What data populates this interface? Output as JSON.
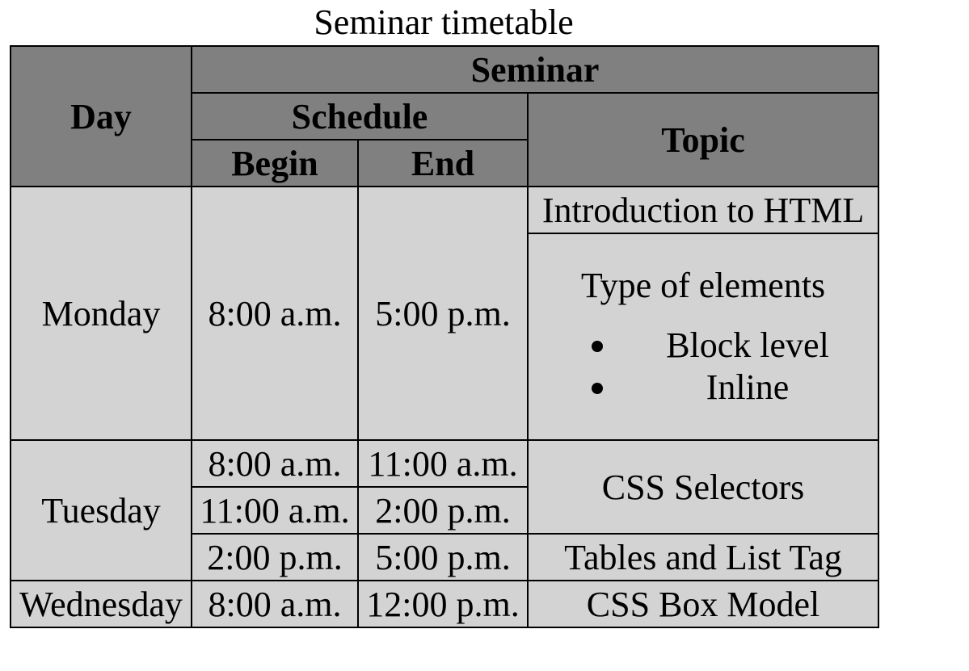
{
  "caption": "Seminar timetable",
  "headers": {
    "day": "Day",
    "seminar": "Seminar",
    "schedule": "Schedule",
    "topic": "Topic",
    "begin": "Begin",
    "end": "End"
  },
  "monday": {
    "day": "Monday",
    "begin": "8:00 a.m.",
    "end": "5:00 p.m.",
    "topic1": "Introduction to HTML",
    "topic2_title": "Type of elements",
    "topic2_items": [
      "Block level",
      "Inline"
    ]
  },
  "tuesday": {
    "day": "Tuesday",
    "slots": [
      {
        "begin": "8:00 a.m.",
        "end": "11:00 a.m."
      },
      {
        "begin": "11:00 a.m.",
        "end": "2:00 p.m."
      },
      {
        "begin": "2:00 p.m.",
        "end": "5:00 p.m."
      }
    ],
    "topic1": "CSS Selectors",
    "topic2": "Tables and List Tag"
  },
  "wednesday": {
    "day": "Wednesday",
    "begin": "8:00 a.m.",
    "end": "12:00 p.m.",
    "topic": "CSS Box Model"
  }
}
